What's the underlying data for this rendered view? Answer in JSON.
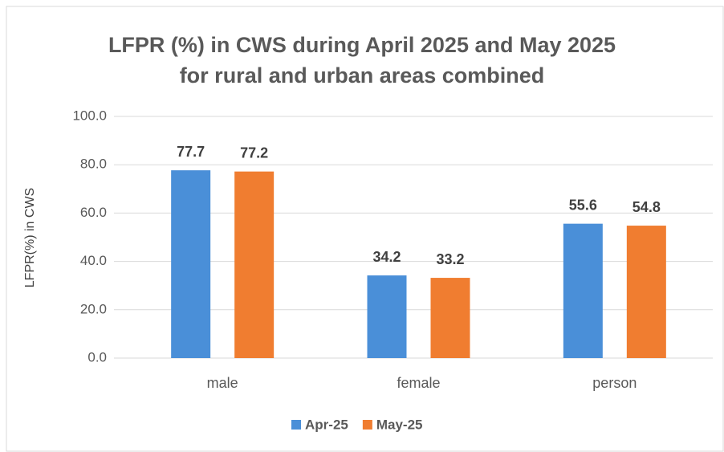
{
  "chart_data": {
    "type": "bar",
    "title": [
      "LFPR (%) in CWS during April 2025 and May 2025",
      "for rural and urban areas combined"
    ],
    "y_label": "LFPR(%) in CWS",
    "categories": [
      "male",
      "female",
      "person"
    ],
    "series": [
      {
        "name": "Apr-25",
        "color": "#4a8fd8",
        "values": [
          77.7,
          34.2,
          55.6
        ]
      },
      {
        "name": "May-25",
        "color": "#f07d30",
        "values": [
          77.2,
          33.2,
          54.8
        ]
      }
    ],
    "ylim": [
      0,
      100
    ],
    "yticks": [
      {
        "value": 0,
        "label": "0.0"
      },
      {
        "value": 20,
        "label": "20.0"
      },
      {
        "value": 40,
        "label": "40.0"
      },
      {
        "value": 60,
        "label": "60.0"
      },
      {
        "value": 80,
        "label": "80.0"
      },
      {
        "value": 100,
        "label": "100.0"
      }
    ],
    "grid": true,
    "legend": "bottom"
  }
}
